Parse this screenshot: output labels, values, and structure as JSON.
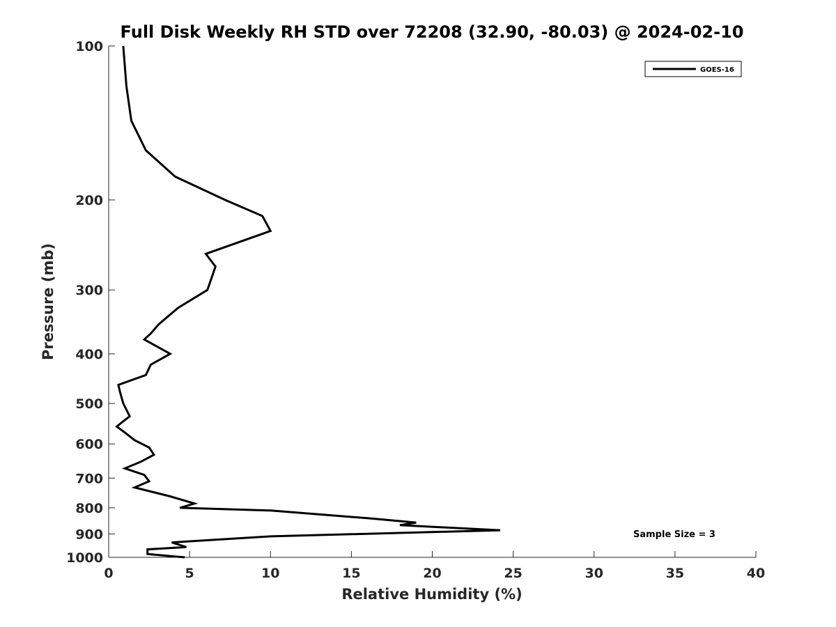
{
  "chart_data": {
    "type": "line",
    "title": "Full Disk Weekly RH STD over 72208 (32.90, -80.03) @ 2024-02-10",
    "xlabel": "Relative Humidity (%)",
    "ylabel": "Pressure (mb)",
    "xlim": [
      0,
      40
    ],
    "ylim": [
      100,
      1000
    ],
    "y_scale": "log",
    "y_reversed": true,
    "x_ticks": [
      "0",
      "5",
      "10",
      "15",
      "20",
      "25",
      "30",
      "35",
      "40"
    ],
    "y_ticks": [
      "100",
      "200",
      "300",
      "400",
      "500",
      "600",
      "700",
      "800",
      "900",
      "1000"
    ],
    "grid": false,
    "legend_position": "top-right",
    "series": [
      {
        "name": "GOES-16",
        "color": "#000000",
        "points": [
          [
            0.9,
            100
          ],
          [
            1.1,
            120
          ],
          [
            1.4,
            140
          ],
          [
            2.3,
            160
          ],
          [
            4.1,
            180
          ],
          [
            7.2,
            200
          ],
          [
            9.5,
            215
          ],
          [
            10.0,
            230
          ],
          [
            6.0,
            255
          ],
          [
            6.6,
            270
          ],
          [
            6.1,
            300
          ],
          [
            4.3,
            325
          ],
          [
            3.1,
            350
          ],
          [
            2.6,
            365
          ],
          [
            2.2,
            375
          ],
          [
            3.8,
            400
          ],
          [
            2.6,
            420
          ],
          [
            2.3,
            440
          ],
          [
            0.6,
            460
          ],
          [
            0.7,
            475
          ],
          [
            0.9,
            500
          ],
          [
            1.3,
            530
          ],
          [
            0.8,
            545
          ],
          [
            0.5,
            555
          ],
          [
            1.0,
            570
          ],
          [
            1.6,
            590
          ],
          [
            2.5,
            610
          ],
          [
            2.8,
            630
          ],
          [
            2.0,
            650
          ],
          [
            1.0,
            670
          ],
          [
            2.2,
            690
          ],
          [
            2.5,
            710
          ],
          [
            1.6,
            730
          ],
          [
            3.8,
            760
          ],
          [
            5.3,
            785
          ],
          [
            4.4,
            800
          ],
          [
            10.0,
            810
          ],
          [
            16.3,
            840
          ],
          [
            19.0,
            855
          ],
          [
            18.0,
            865
          ],
          [
            24.2,
            885
          ],
          [
            10.0,
            910
          ],
          [
            3.9,
            935
          ],
          [
            4.8,
            955
          ],
          [
            2.4,
            965
          ],
          [
            2.4,
            985
          ],
          [
            4.7,
            1000
          ]
        ]
      }
    ],
    "annotations": [
      "Sample Size = 3"
    ]
  }
}
